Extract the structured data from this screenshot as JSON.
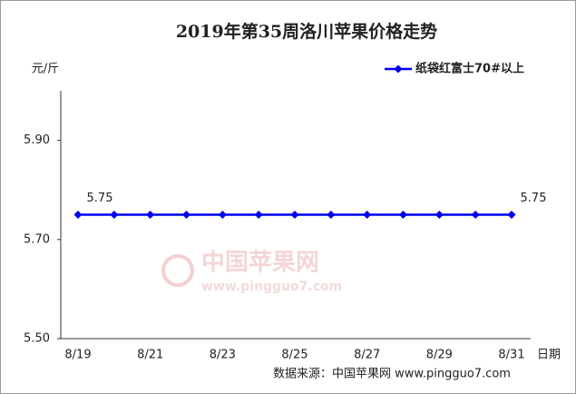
{
  "chart_data": {
    "type": "line",
    "title": "2019年第35周洛川苹果价格走势",
    "y_label": "元/斤",
    "x_label": "日期",
    "categories": [
      "8/19",
      null,
      "8/21",
      null,
      "8/23",
      null,
      "8/25",
      null,
      "8/27",
      null,
      "8/29",
      null,
      "8/31"
    ],
    "series": [
      {
        "name": "纸袋红富士70#以上",
        "color": "#0000ee",
        "values": [
          5.75,
          5.75,
          5.75,
          5.75,
          5.75,
          5.75,
          5.75,
          5.75,
          5.75,
          5.75,
          5.75,
          5.75,
          5.75
        ],
        "value_labels": [
          "5.75",
          null,
          null,
          null,
          null,
          null,
          null,
          null,
          null,
          null,
          null,
          null,
          "5.75"
        ]
      }
    ],
    "ylim": [
      5.5,
      6.0
    ],
    "yticks": [
      {
        "value": 5.5,
        "label": "5.50"
      },
      {
        "value": 5.7,
        "label": "5.70"
      },
      {
        "value": 5.9,
        "label": "5.90"
      }
    ],
    "legend": "top-right",
    "watermark": "中国苹果网",
    "watermark_url": "www.pingguo7.com",
    "source": "数据来源：中国苹果网 www.pingguo7.com"
  }
}
